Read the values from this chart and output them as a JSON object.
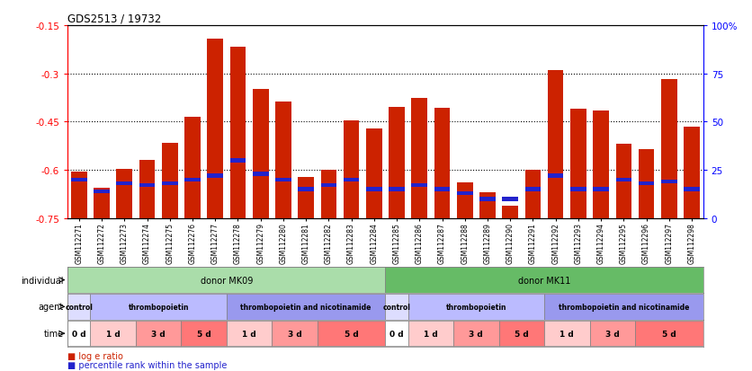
{
  "title": "GDS2513 / 19732",
  "samples": [
    "GSM112271",
    "GSM112272",
    "GSM112273",
    "GSM112274",
    "GSM112275",
    "GSM112276",
    "GSM112277",
    "GSM112278",
    "GSM112279",
    "GSM112280",
    "GSM112281",
    "GSM112282",
    "GSM112283",
    "GSM112284",
    "GSM112285",
    "GSM112286",
    "GSM112287",
    "GSM112288",
    "GSM112289",
    "GSM112290",
    "GSM112291",
    "GSM112292",
    "GSM112293",
    "GSM112294",
    "GSM112295",
    "GSM112296",
    "GSM112297",
    "GSM112298"
  ],
  "log_e_ratio": [
    -0.605,
    -0.655,
    -0.597,
    -0.57,
    -0.515,
    -0.435,
    -0.192,
    -0.218,
    -0.348,
    -0.388,
    -0.623,
    -0.6,
    -0.447,
    -0.47,
    -0.405,
    -0.375,
    -0.408,
    -0.64,
    -0.67,
    -0.71,
    -0.6,
    -0.29,
    -0.41,
    -0.415,
    -0.52,
    -0.535,
    -0.318,
    -0.465
  ],
  "percentile_rank": [
    20,
    14,
    18,
    17,
    18,
    20,
    22,
    30,
    23,
    20,
    15,
    17,
    20,
    15,
    15,
    17,
    15,
    13,
    10,
    10,
    15,
    22,
    15,
    15,
    20,
    18,
    19,
    15
  ],
  "ylim_left": [
    -0.75,
    -0.15
  ],
  "ylim_right": [
    0,
    100
  ],
  "yticks_left": [
    -0.75,
    -0.6,
    -0.45,
    -0.3,
    -0.15
  ],
  "yticks_right": [
    0,
    25,
    50,
    75,
    100
  ],
  "ytick_labels_left": [
    "-0.75",
    "-0.6",
    "-0.45",
    "-0.3",
    "-0.15"
  ],
  "ytick_labels_right": [
    "0",
    "25",
    "50",
    "75",
    "100%"
  ],
  "hlines": [
    -0.3,
    -0.45,
    -0.6
  ],
  "individual_row": {
    "label": "individual",
    "groups": [
      {
        "text": "donor MK09",
        "start": 0,
        "end": 13,
        "color": "#aaddaa"
      },
      {
        "text": "donor MK11",
        "start": 14,
        "end": 27,
        "color": "#66bb66"
      }
    ]
  },
  "agent_row": {
    "label": "agent",
    "groups": [
      {
        "text": "control",
        "start": 0,
        "end": 0,
        "color": "#ddddff"
      },
      {
        "text": "thrombopoietin",
        "start": 1,
        "end": 6,
        "color": "#bbbbff"
      },
      {
        "text": "thrombopoietin and nicotinamide",
        "start": 7,
        "end": 13,
        "color": "#9999ee"
      },
      {
        "text": "control",
        "start": 14,
        "end": 14,
        "color": "#ddddff"
      },
      {
        "text": "thrombopoietin",
        "start": 15,
        "end": 20,
        "color": "#bbbbff"
      },
      {
        "text": "thrombopoietin and nicotinamide",
        "start": 21,
        "end": 27,
        "color": "#9999ee"
      }
    ]
  },
  "time_row": {
    "label": "time",
    "groups": [
      {
        "text": "0 d",
        "start": 0,
        "end": 0,
        "color": "#ffffff"
      },
      {
        "text": "1 d",
        "start": 1,
        "end": 2,
        "color": "#ffcccc"
      },
      {
        "text": "3 d",
        "start": 3,
        "end": 4,
        "color": "#ff9999"
      },
      {
        "text": "5 d",
        "start": 5,
        "end": 6,
        "color": "#ff7777"
      },
      {
        "text": "1 d",
        "start": 7,
        "end": 8,
        "color": "#ffcccc"
      },
      {
        "text": "3 d",
        "start": 9,
        "end": 10,
        "color": "#ff9999"
      },
      {
        "text": "5 d",
        "start": 11,
        "end": 13,
        "color": "#ff7777"
      },
      {
        "text": "0 d",
        "start": 14,
        "end": 14,
        "color": "#ffffff"
      },
      {
        "text": "1 d",
        "start": 15,
        "end": 16,
        "color": "#ffcccc"
      },
      {
        "text": "3 d",
        "start": 17,
        "end": 18,
        "color": "#ff9999"
      },
      {
        "text": "5 d",
        "start": 19,
        "end": 20,
        "color": "#ff7777"
      },
      {
        "text": "1 d",
        "start": 21,
        "end": 22,
        "color": "#ffcccc"
      },
      {
        "text": "3 d",
        "start": 23,
        "end": 24,
        "color": "#ff9999"
      },
      {
        "text": "5 d",
        "start": 25,
        "end": 27,
        "color": "#ff7777"
      }
    ]
  },
  "bar_color": "#cc2200",
  "blue_color": "#2222cc",
  "background_color": "#ffffff",
  "left_label_color": "#888888",
  "legend_items": [
    {
      "color": "#cc2200",
      "label": "log e ratio"
    },
    {
      "color": "#2222cc",
      "label": "percentile rank within the sample"
    }
  ]
}
